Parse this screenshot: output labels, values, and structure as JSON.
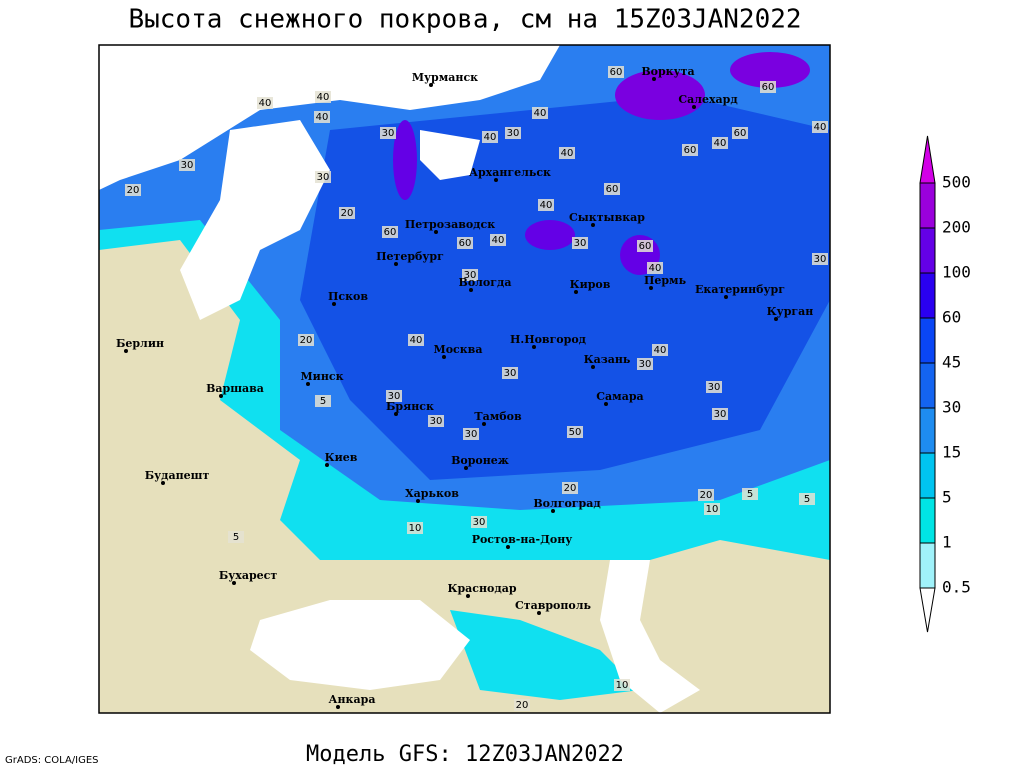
{
  "title": "Высота снежного покрова, см на 15Z03JAN2022",
  "footer": {
    "credit": "GrADS: COLA/IGES",
    "model": "Модель GFS: 12Z03JAN2022"
  },
  "cities": [
    "Мурманск",
    "Воркута",
    "Салехард",
    "Архангельск",
    "Сыктывкар",
    "Петрозаводск",
    "Петербург",
    "Вологда",
    "Киров",
    "Пермь",
    "Екатеринбург",
    "Курган",
    "Псков",
    "Н.Новгород",
    "Москва",
    "Казань",
    "Берлин",
    "Варшава",
    "Минск",
    "Самара",
    "Брянск",
    "Тамбов",
    "Киев",
    "Воронеж",
    "Будапешт",
    "Харьков",
    "Волгоград",
    "Ростов-на-Дону",
    "Бухарест",
    "Краснодар",
    "Ставрополь",
    "Анкара"
  ],
  "contour_labels": [
    40,
    40,
    40,
    30,
    20,
    20,
    30,
    30,
    40,
    30,
    40,
    60,
    60,
    60,
    40,
    60,
    40,
    40,
    60,
    40,
    60,
    60,
    40,
    30,
    60,
    40,
    30,
    30,
    40,
    20,
    5,
    30,
    30,
    30,
    40,
    30,
    30,
    50,
    30,
    30,
    20,
    10,
    5,
    5,
    10,
    30,
    20,
    5,
    20,
    10
  ],
  "colorbar": {
    "levels": [
      0.5,
      1,
      5,
      15,
      30,
      45,
      60,
      100,
      200,
      500
    ],
    "colors": [
      "#a0f2fa",
      "#00e4e4",
      "#00c4f0",
      "#1e8cf0",
      "#1464f0",
      "#0a46f5",
      "#2a00f0",
      "#6400e6",
      "#9a00dc"
    ],
    "under_color": "#ffffff",
    "over_color": "#d200e6"
  }
}
